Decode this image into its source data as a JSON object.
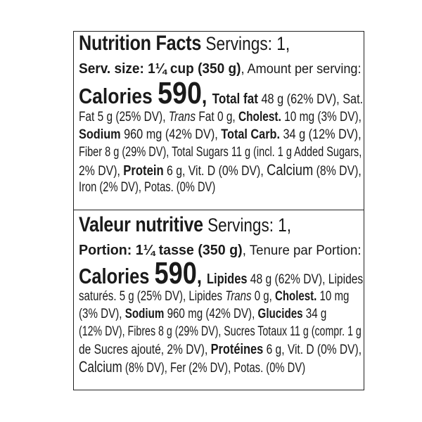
{
  "english": {
    "title": "Nutrition Facts",
    "servings": " Servings: 1,",
    "serv_size": "Serv. size: 1¼ cup (350 g)",
    "amount_per": ", Amount per serving:",
    "calories_label": "Calories ",
    "calories_value": "590",
    "comma": ", ",
    "total_fat_label": "Total fat",
    "total_fat_value": " 48 g (62% DV), Sat.",
    "sat_fat_value": "Fat 5 g (25% DV), ",
    "trans_label": "Trans",
    "trans_value": " Fat 0 g, ",
    "cholest_label": "Cholest.",
    "cholest_value": " 10 mg (3% DV),",
    "sodium_label": "Sodium",
    "sodium_value": " 960 mg (42% DV), ",
    "carb_label": "Total Carb.",
    "carb_value": " 34 g (12% DV),",
    "fiber_sugars": "Fiber 8 g (29% DV), Total Sugars 11 g (incl. 1 g Added Sugars,",
    "added_dv": "2% DV), ",
    "protein_label": "Protein",
    "protein_value": " 6 g, Vit. D (0% DV), ",
    "calcium_label": "Calcium",
    "calcium_value": " (8% DV),",
    "iron_potas": "Iron (2% DV), Potas. (0% DV)"
  },
  "french": {
    "title": "Valeur nutritive",
    "servings": " Servings: 1,",
    "portion": "Portion: 1¼ tasse (350 g)",
    "amount_per": ", Tenure par Portion:",
    "calories_label": "Calories ",
    "calories_value": "590",
    "comma": ", ",
    "lipides_label": "Lipides",
    "lipides_value": " 48 g (62% DV), Lipides",
    "sat_value": "saturés. 5 g (25% DV), Lipides ",
    "trans_label": "Trans",
    "trans_value": " 0 g, ",
    "cholest_label": "Cholest.",
    "cholest_value": " 10 mg",
    "cholest_dv": "(3% DV), ",
    "sodium_label": "Sodium",
    "sodium_value": " 960 mg (42% DV), ",
    "glucides_label": "Glucides",
    "glucides_value": " 34 g",
    "fibres_sucres": "(12% DV), Fibres 8 g (29% DV), Sucres Totaux 11 g (compr. 1 g",
    "added": "de Sucres ajouté, 2% DV), ",
    "proteines_label": "Protéines",
    "proteines_value": " 6 g, Vit. D (0% DV),",
    "calcium_label": "Calcium",
    "calcium_rest": " (8% DV), Fer (2% DV), Potas. (0% DV)"
  }
}
